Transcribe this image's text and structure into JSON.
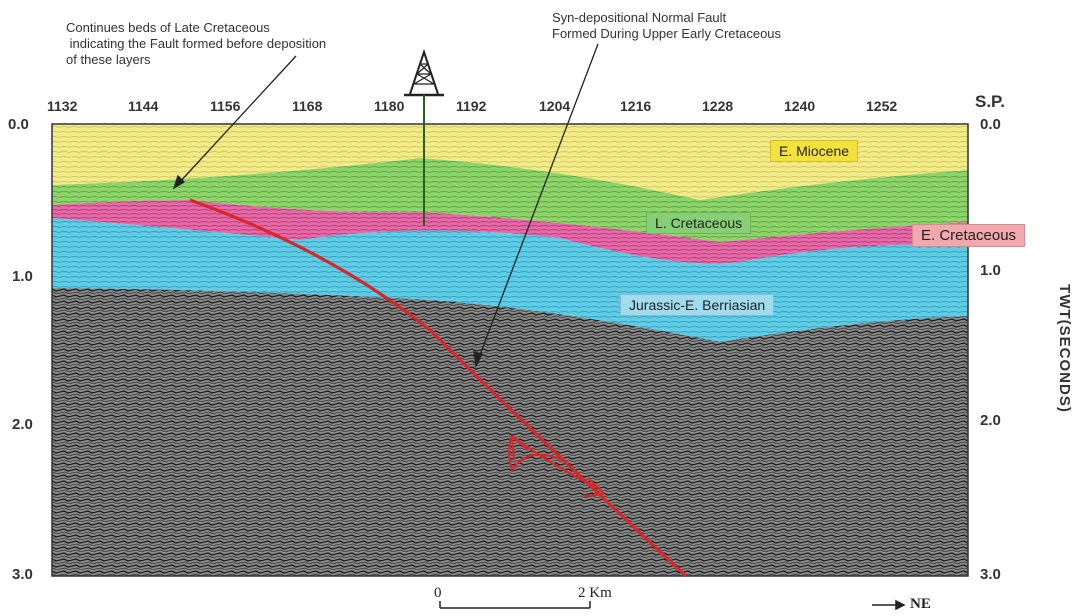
{
  "annotations": {
    "left_note": "Continues beds of Late Cretaceous\n indicating the Fault formed before deposition\nof these layers",
    "right_note": "Syn-depositional Normal Fault\nFormed During Upper Early Cretaceous"
  },
  "shotpoints": {
    "values": [
      "1132",
      "1144",
      "1156",
      "1168",
      "1180",
      "1192",
      "1204",
      "1216",
      "1228",
      "1240",
      "1252"
    ],
    "label": "S.P."
  },
  "twt_left": [
    "0.0",
    "1.0",
    "2.0",
    "3.0"
  ],
  "twt_right": [
    "0.0",
    "1.0",
    "2.0",
    "3.0"
  ],
  "vertical_axis_title": "TWT(SECONDS)",
  "formations": {
    "miocene": {
      "label": "E. Miocene",
      "color": "#f0e455"
    },
    "late_cretaceous": {
      "label": "L. Cretaceous",
      "color": "#86cf74"
    },
    "early_cretaceous": {
      "label": "E. Cretaceous",
      "color": "#f2a8ac"
    },
    "jurassic": {
      "label": "Jurassic-E. Berriasian",
      "color": "#9fdcef"
    }
  },
  "scale": {
    "start": "0",
    "end": "2 Km"
  },
  "direction": "NE",
  "colors": {
    "fault": "#d8262a",
    "miocene_fill": "#f2eb8a",
    "lcret_fill": "#8ed46a",
    "ecret_fill": "#e56aa8",
    "jur_fill": "#5fcde6",
    "basement": "#5a5a5a"
  }
}
